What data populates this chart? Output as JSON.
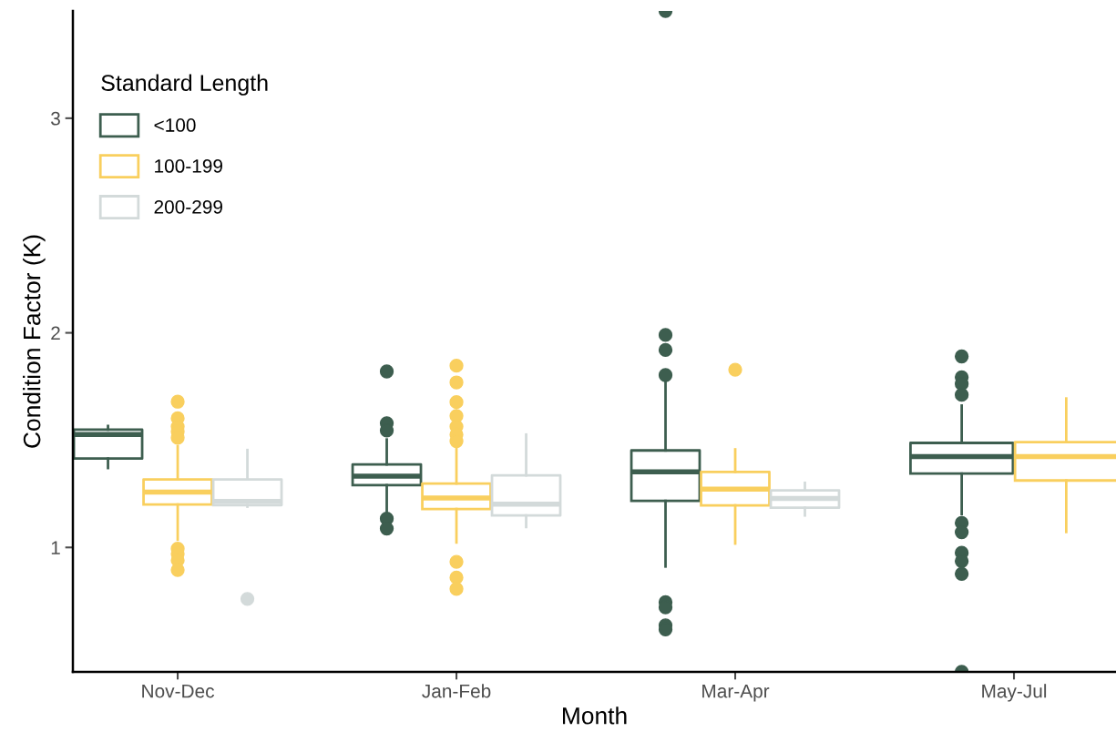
{
  "chart_data": {
    "type": "box",
    "xlabel": "Month",
    "ylabel": "Condition Factor (K)",
    "legend_title": "Standard Length",
    "legend": "top left",
    "grid": false,
    "categories": [
      "Nov-Dec",
      "Jan-Feb",
      "Mar-Apr",
      "May-Jul"
    ],
    "ylim": [
      0.42,
      3.5
    ],
    "yticks": [
      1,
      2,
      3
    ],
    "series": [
      {
        "name": "<100",
        "color": "#3d5e4f",
        "boxes": [
          {
            "low": 1.37,
            "q1": 1.414,
            "median": 1.526,
            "q3": 1.549,
            "high": 1.566
          },
          {
            "low": 1.168,
            "q1": 1.29,
            "median": 1.332,
            "q3": 1.387,
            "high": 1.503,
            "outliers": [
              1.82,
              1.579,
              1.545,
              1.134,
              1.088
            ]
          },
          {
            "low": 0.911,
            "q1": 1.217,
            "median": 1.352,
            "q3": 1.452,
            "high": 1.774,
            "outliers": [
              3.5,
              1.99,
              1.92,
              1.803,
              0.745,
              0.721,
              0.637,
              0.618
            ]
          },
          {
            "low": 1.155,
            "q1": 1.344,
            "median": 1.423,
            "q3": 1.487,
            "high": 1.661,
            "outliers": [
              1.89,
              1.793,
              1.762,
              1.711,
              1.114,
              1.071,
              0.975,
              0.936,
              0.877,
              0.42
            ]
          }
        ]
      },
      {
        "name": "100-199",
        "color": "#f9cf5e",
        "boxes": [
          {
            "low": 1.036,
            "q1": 1.2,
            "median": 1.258,
            "q3": 1.317,
            "high": 1.472,
            "outliers": [
              1.679,
              1.602,
              1.563,
              1.54,
              1.511,
              0.994,
              0.97,
              0.94,
              0.895
            ]
          },
          {
            "low": 1.023,
            "q1": 1.179,
            "median": 1.23,
            "q3": 1.298,
            "high": 1.465,
            "outliers": [
              1.847,
              1.769,
              1.677,
              1.613,
              1.563,
              1.526,
              1.495,
              0.933,
              0.86,
              0.807
            ]
          },
          {
            "low": 1.018,
            "q1": 1.196,
            "median": 1.272,
            "q3": 1.352,
            "high": 1.457,
            "outliers": [
              1.828
            ]
          },
          {
            "low": 1.072,
            "q1": 1.312,
            "median": 1.423,
            "q3": 1.491,
            "high": 1.694
          }
        ]
      },
      {
        "name": "200-299",
        "color": "#d3dada",
        "boxes": [
          {
            "low": 1.19,
            "q1": 1.197,
            "median": 1.214,
            "q3": 1.317,
            "high": 1.454,
            "outliers": [
              0.76
            ]
          },
          {
            "low": 1.095,
            "q1": 1.149,
            "median": 1.202,
            "q3": 1.336,
            "high": 1.526
          },
          {
            "low": 1.149,
            "q1": 1.185,
            "median": 1.228,
            "q3": 1.266,
            "high": 1.301
          },
          null
        ]
      }
    ]
  }
}
